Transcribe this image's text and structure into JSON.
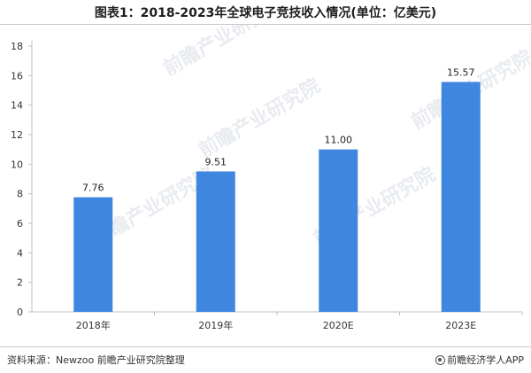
{
  "title": "图表1：2018-2023年全球电子竞技收入情况(单位：亿美元)",
  "footer": {
    "source": "资料来源：Newzoo 前瞻产业研究院整理",
    "brand": "前瞻经济学人APP",
    "brand_icon": "qianzhan-logo-icon"
  },
  "watermark": {
    "text": "前瞻产业研究院",
    "color": "#d7dbe2"
  },
  "chart_data": {
    "type": "bar",
    "title": "图表1：2018-2023年全球电子竞技收入情况(单位：亿美元)",
    "xlabel": "",
    "ylabel": "",
    "categories": [
      "2018年",
      "2019年",
      "2020E",
      "2023E"
    ],
    "values": [
      7.76,
      9.51,
      11.0,
      15.57
    ],
    "data_labels": [
      "7.76",
      "9.51",
      "11.00",
      "15.57"
    ],
    "ylim": [
      0,
      18
    ],
    "yticks": [
      0,
      2,
      4,
      6,
      8,
      10,
      12,
      14,
      16,
      18
    ],
    "grid": false,
    "legend": "none",
    "bar_color": "#3f86e0"
  }
}
